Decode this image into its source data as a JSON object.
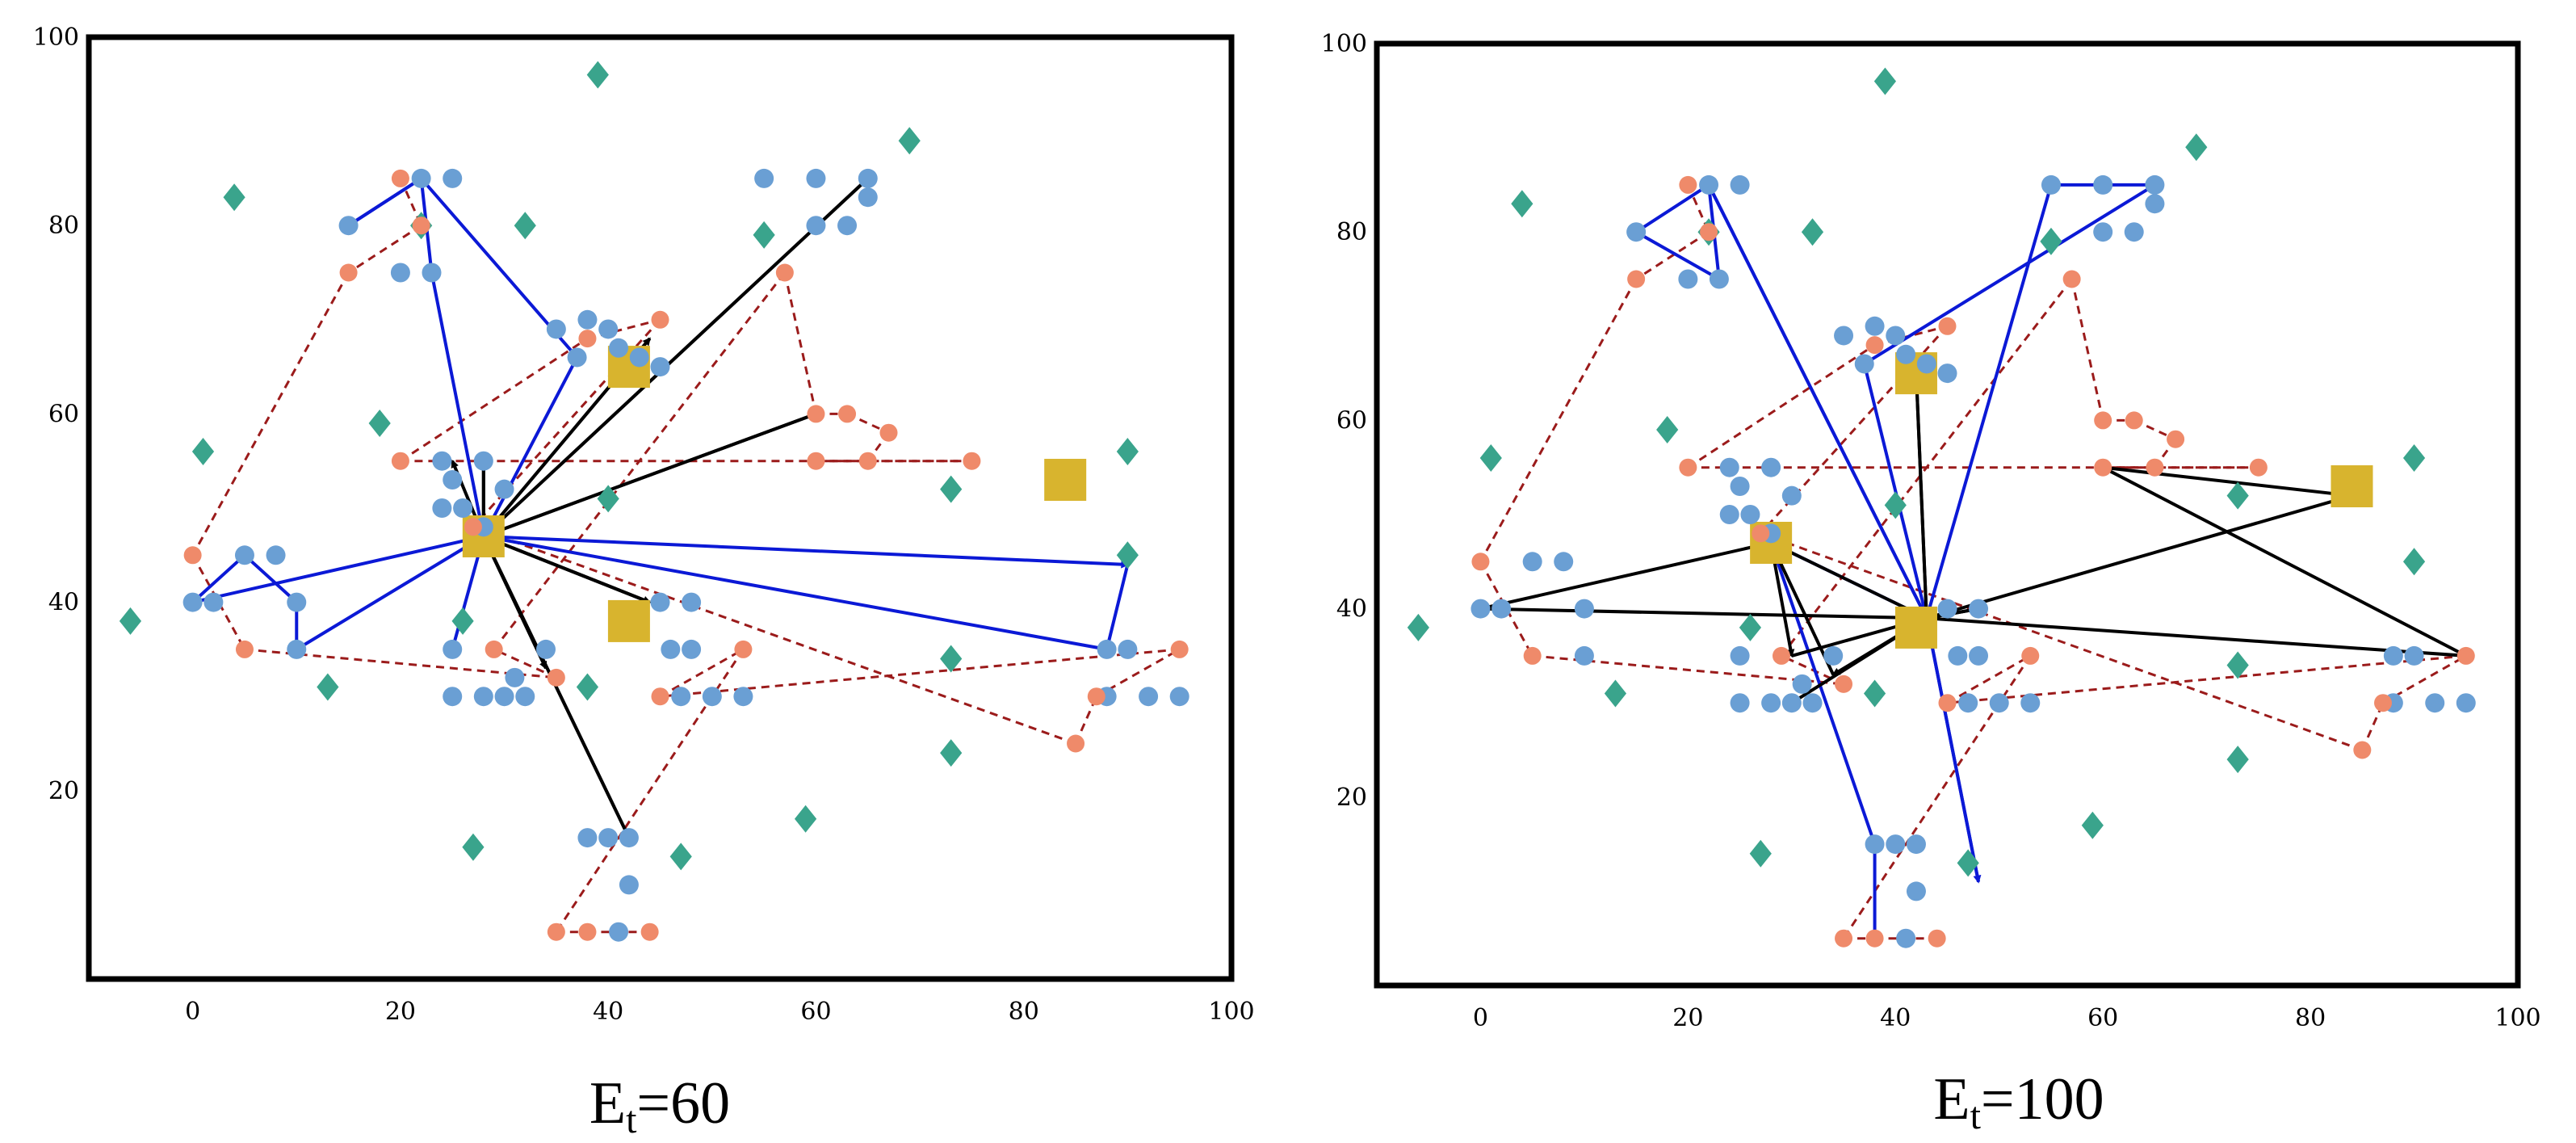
{
  "chart_data": [
    {
      "type": "scatter",
      "title": "Et=60",
      "title_main": "E",
      "title_sub": "t",
      "title_rest": "=60",
      "xlim": [
        -10,
        100
      ],
      "ylim": [
        0,
        100
      ],
      "x_ticks": [
        0,
        20,
        40,
        60,
        80,
        100
      ],
      "y_ticks": [
        20,
        40,
        60,
        80,
        100
      ],
      "x_tick_labels": [
        "0",
        "20",
        "40",
        "60",
        "80",
        "100"
      ],
      "y_tick_labels": [
        "20",
        "40",
        "60",
        "80",
        "100"
      ],
      "colors": {
        "customer": "#6a9fd4",
        "pickup": "#ef8a6a",
        "obstacle": "#3aa48c",
        "depot": "#d8b42e",
        "route_black": "#000000",
        "route_blue": "#0b19d6",
        "route_dashed": "#9b1b1b"
      },
      "customers": [
        [
          22,
          85
        ],
        [
          25,
          85
        ],
        [
          15,
          80
        ],
        [
          20,
          75
        ],
        [
          23,
          75
        ],
        [
          37,
          66
        ],
        [
          38,
          70
        ],
        [
          40,
          69
        ],
        [
          41,
          67
        ],
        [
          43,
          66
        ],
        [
          45,
          65
        ],
        [
          35,
          69
        ],
        [
          55,
          85
        ],
        [
          60,
          85
        ],
        [
          65,
          85
        ],
        [
          60,
          80
        ],
        [
          63,
          80
        ],
        [
          65,
          83
        ],
        [
          24,
          55
        ],
        [
          25,
          53
        ],
        [
          28,
          55
        ],
        [
          24,
          50
        ],
        [
          26,
          50
        ],
        [
          28,
          48
        ],
        [
          30,
          52
        ],
        [
          0,
          40
        ],
        [
          2,
          40
        ],
        [
          5,
          45
        ],
        [
          8,
          45
        ],
        [
          10,
          40
        ],
        [
          10,
          35
        ],
        [
          25,
          35
        ],
        [
          25,
          30
        ],
        [
          28,
          30
        ],
        [
          30,
          30
        ],
        [
          31,
          32
        ],
        [
          32,
          30
        ],
        [
          34,
          35
        ],
        [
          45,
          40
        ],
        [
          48,
          40
        ],
        [
          46,
          35
        ],
        [
          47,
          30
        ],
        [
          50,
          30
        ],
        [
          53,
          30
        ],
        [
          48,
          35
        ],
        [
          88,
          35
        ],
        [
          90,
          35
        ],
        [
          88,
          30
        ],
        [
          92,
          30
        ],
        [
          95,
          30
        ],
        [
          38,
          15
        ],
        [
          40,
          15
        ],
        [
          42,
          15
        ],
        [
          41,
          5
        ],
        [
          42,
          10
        ]
      ],
      "pickups": [
        [
          20,
          85
        ],
        [
          22,
          80
        ],
        [
          15,
          75
        ],
        [
          0,
          45
        ],
        [
          5,
          35
        ],
        [
          35,
          32
        ],
        [
          29,
          35
        ],
        [
          57,
          75
        ],
        [
          60,
          60
        ],
        [
          63,
          60
        ],
        [
          67,
          58
        ],
        [
          65,
          55
        ],
        [
          60,
          55
        ],
        [
          75,
          55
        ],
        [
          20,
          55
        ],
        [
          38,
          68
        ],
        [
          45,
          70
        ],
        [
          27,
          48
        ],
        [
          85,
          25
        ],
        [
          87,
          30
        ],
        [
          95,
          35
        ],
        [
          45,
          30
        ],
        [
          53,
          35
        ],
        [
          35,
          5
        ],
        [
          38,
          5
        ],
        [
          44,
          5
        ]
      ],
      "obstacles": [
        [
          39,
          96
        ],
        [
          69,
          89
        ],
        [
          4,
          83
        ],
        [
          22,
          80
        ],
        [
          32,
          80
        ],
        [
          55,
          79
        ],
        [
          18,
          59
        ],
        [
          1,
          56
        ],
        [
          90,
          56
        ],
        [
          40,
          51
        ],
        [
          73,
          52
        ],
        [
          90,
          45
        ],
        [
          -6,
          38
        ],
        [
          26,
          38
        ],
        [
          13,
          31
        ],
        [
          38,
          31
        ],
        [
          73,
          34
        ],
        [
          73,
          24
        ],
        [
          59,
          17
        ],
        [
          27,
          14
        ],
        [
          47,
          13
        ]
      ],
      "depots": [
        [
          42,
          65
        ],
        [
          84,
          53
        ],
        [
          42,
          38
        ],
        [
          28,
          47
        ]
      ],
      "route_black": [
        [
          28,
          47
        ],
        [
          44,
          68
        ],
        [
          28,
          47
        ],
        [
          65,
          85
        ],
        [
          28,
          47
        ],
        [
          60,
          60
        ],
        [
          28,
          47
        ],
        [
          44,
          40
        ],
        [
          28,
          47
        ],
        [
          34,
          33
        ],
        [
          28,
          47
        ],
        [
          42,
          15
        ],
        [
          28,
          47
        ],
        [
          28,
          55
        ],
        [
          28,
          47
        ],
        [
          25,
          55
        ]
      ],
      "route_blue": [
        [
          28,
          47
        ],
        [
          23,
          75
        ],
        [
          22,
          85
        ],
        [
          15,
          80
        ],
        [
          22,
          85
        ],
        [
          37,
          66
        ],
        [
          28,
          47
        ],
        [
          0,
          40
        ],
        [
          5,
          45
        ],
        [
          10,
          40
        ],
        [
          10,
          35
        ],
        [
          28,
          47
        ],
        [
          90,
          44
        ],
        [
          88,
          35
        ],
        [
          28,
          47
        ],
        [
          25,
          35
        ]
      ],
      "route_dashed": [
        [
          20,
          85
        ],
        [
          22,
          80
        ],
        [
          15,
          75
        ],
        [
          0,
          45
        ],
        [
          5,
          35
        ],
        [
          35,
          32
        ],
        [
          29,
          35
        ],
        [
          57,
          75
        ],
        [
          60,
          60
        ],
        [
          63,
          60
        ],
        [
          67,
          58
        ],
        [
          65,
          55
        ],
        [
          60,
          55
        ],
        [
          75,
          55
        ],
        [
          20,
          55
        ],
        [
          38,
          68
        ],
        [
          45,
          70
        ],
        [
          27,
          48
        ],
        [
          85,
          25
        ],
        [
          87,
          30
        ],
        [
          95,
          35
        ],
        [
          45,
          30
        ],
        [
          53,
          35
        ],
        [
          35,
          5
        ],
        [
          38,
          5
        ],
        [
          44,
          5
        ]
      ]
    },
    {
      "type": "scatter",
      "title": "Et=100",
      "title_main": "E",
      "title_sub": "t",
      "title_rest": "=100",
      "xlim": [
        -10,
        100
      ],
      "ylim": [
        0,
        100
      ],
      "x_ticks": [
        0,
        20,
        40,
        60,
        80,
        100
      ],
      "y_ticks": [
        20,
        40,
        60,
        80,
        100
      ],
      "x_tick_labels": [
        "0",
        "20",
        "40",
        "60",
        "80",
        "100"
      ],
      "y_tick_labels": [
        "20",
        "40",
        "60",
        "80",
        "100"
      ],
      "colors": {
        "customer": "#6a9fd4",
        "pickup": "#ef8a6a",
        "obstacle": "#3aa48c",
        "depot": "#d8b42e",
        "route_black": "#000000",
        "route_blue": "#0b19d6",
        "route_dashed": "#9b1b1b"
      },
      "customers": [
        [
          22,
          85
        ],
        [
          25,
          85
        ],
        [
          15,
          80
        ],
        [
          20,
          75
        ],
        [
          23,
          75
        ],
        [
          37,
          66
        ],
        [
          38,
          70
        ],
        [
          40,
          69
        ],
        [
          41,
          67
        ],
        [
          43,
          66
        ],
        [
          45,
          65
        ],
        [
          35,
          69
        ],
        [
          55,
          85
        ],
        [
          60,
          85
        ],
        [
          65,
          85
        ],
        [
          60,
          80
        ],
        [
          63,
          80
        ],
        [
          65,
          83
        ],
        [
          24,
          55
        ],
        [
          25,
          53
        ],
        [
          28,
          55
        ],
        [
          24,
          50
        ],
        [
          26,
          50
        ],
        [
          28,
          48
        ],
        [
          30,
          52
        ],
        [
          0,
          40
        ],
        [
          2,
          40
        ],
        [
          5,
          45
        ],
        [
          8,
          45
        ],
        [
          10,
          40
        ],
        [
          10,
          35
        ],
        [
          25,
          35
        ],
        [
          25,
          30
        ],
        [
          28,
          30
        ],
        [
          30,
          30
        ],
        [
          31,
          32
        ],
        [
          32,
          30
        ],
        [
          34,
          35
        ],
        [
          45,
          40
        ],
        [
          48,
          40
        ],
        [
          46,
          35
        ],
        [
          47,
          30
        ],
        [
          50,
          30
        ],
        [
          53,
          30
        ],
        [
          48,
          35
        ],
        [
          88,
          35
        ],
        [
          90,
          35
        ],
        [
          88,
          30
        ],
        [
          92,
          30
        ],
        [
          95,
          30
        ],
        [
          38,
          15
        ],
        [
          40,
          15
        ],
        [
          42,
          15
        ],
        [
          41,
          5
        ],
        [
          42,
          10
        ]
      ],
      "pickups": [
        [
          20,
          85
        ],
        [
          22,
          80
        ],
        [
          15,
          75
        ],
        [
          0,
          45
        ],
        [
          5,
          35
        ],
        [
          35,
          32
        ],
        [
          29,
          35
        ],
        [
          57,
          75
        ],
        [
          60,
          60
        ],
        [
          63,
          60
        ],
        [
          67,
          58
        ],
        [
          65,
          55
        ],
        [
          60,
          55
        ],
        [
          75,
          55
        ],
        [
          20,
          55
        ],
        [
          38,
          68
        ],
        [
          45,
          70
        ],
        [
          27,
          48
        ],
        [
          85,
          25
        ],
        [
          87,
          30
        ],
        [
          95,
          35
        ],
        [
          45,
          30
        ],
        [
          53,
          35
        ],
        [
          35,
          5
        ],
        [
          38,
          5
        ],
        [
          44,
          5
        ]
      ],
      "obstacles": [
        [
          39,
          96
        ],
        [
          69,
          89
        ],
        [
          4,
          83
        ],
        [
          22,
          80
        ],
        [
          32,
          80
        ],
        [
          55,
          79
        ],
        [
          18,
          59
        ],
        [
          1,
          56
        ],
        [
          90,
          56
        ],
        [
          40,
          51
        ],
        [
          73,
          52
        ],
        [
          90,
          45
        ],
        [
          -6,
          38
        ],
        [
          26,
          38
        ],
        [
          13,
          31
        ],
        [
          38,
          31
        ],
        [
          73,
          34
        ],
        [
          73,
          24
        ],
        [
          59,
          17
        ],
        [
          27,
          14
        ],
        [
          47,
          13
        ]
      ],
      "depots": [
        [
          42,
          65
        ],
        [
          84,
          53
        ],
        [
          42,
          38
        ],
        [
          28,
          47
        ]
      ],
      "route_black": [
        [
          43,
          39
        ],
        [
          0,
          40
        ],
        [
          28,
          47
        ],
        [
          43,
          39
        ],
        [
          95,
          35
        ],
        [
          60,
          55
        ],
        [
          84,
          52
        ],
        [
          43,
          39
        ],
        [
          42,
          65
        ],
        [
          43,
          39
        ],
        [
          34,
          33
        ],
        [
          28,
          47
        ],
        [
          30,
          35
        ],
        [
          43,
          39
        ],
        [
          48,
          40
        ],
        [
          43,
          39
        ],
        [
          30,
          30
        ]
      ],
      "route_blue": [
        [
          43,
          39
        ],
        [
          22,
          85
        ],
        [
          15,
          80
        ],
        [
          23,
          75
        ],
        [
          22,
          85
        ],
        [
          43,
          39
        ],
        [
          37,
          66
        ],
        [
          65,
          85
        ],
        [
          55,
          85
        ],
        [
          43,
          39
        ],
        [
          48,
          11
        ],
        [
          43,
          39
        ],
        [
          28,
          47
        ],
        [
          38,
          15
        ],
        [
          38,
          5
        ]
      ],
      "route_dashed": [
        [
          20,
          85
        ],
        [
          22,
          80
        ],
        [
          15,
          75
        ],
        [
          0,
          45
        ],
        [
          5,
          35
        ],
        [
          35,
          32
        ],
        [
          29,
          35
        ],
        [
          57,
          75
        ],
        [
          60,
          60
        ],
        [
          63,
          60
        ],
        [
          67,
          58
        ],
        [
          65,
          55
        ],
        [
          60,
          55
        ],
        [
          75,
          55
        ],
        [
          20,
          55
        ],
        [
          38,
          68
        ],
        [
          45,
          70
        ],
        [
          27,
          48
        ],
        [
          85,
          25
        ],
        [
          87,
          30
        ],
        [
          95,
          35
        ],
        [
          45,
          30
        ],
        [
          53,
          35
        ],
        [
          35,
          5
        ],
        [
          38,
          5
        ],
        [
          44,
          5
        ]
      ]
    }
  ]
}
